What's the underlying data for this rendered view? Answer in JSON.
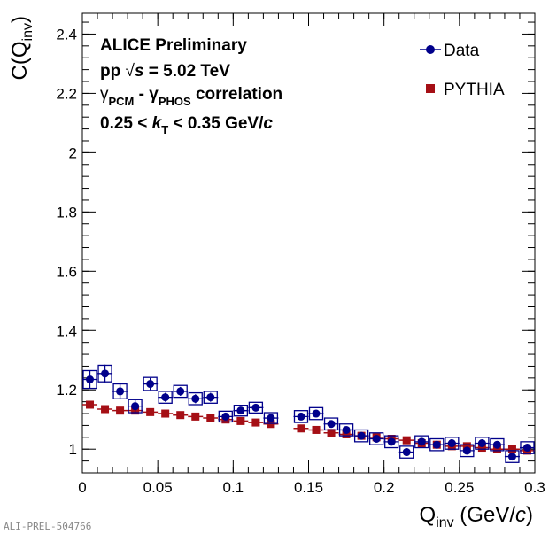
{
  "chart_data": {
    "type": "scatter",
    "title": "",
    "xlabel": {
      "main": "Q",
      "sub": "inv",
      "unit_pre": " (GeV/",
      "unit_italic": "c",
      "unit_post": ")"
    },
    "ylabel": {
      "main": "C(Q",
      "sub": "inv",
      "post": ")"
    },
    "xlim": [
      0,
      0.3
    ],
    "ylim": [
      0.92,
      2.47
    ],
    "xticks": [
      0,
      0.05,
      0.1,
      0.15,
      0.2,
      0.25,
      0.3
    ],
    "xtick_labels": [
      "0",
      "0.05",
      "0.1",
      "0.15",
      "0.2",
      "0.25",
      "0.3"
    ],
    "yticks": [
      1,
      1.2,
      1.4,
      1.6,
      1.8,
      2,
      2.2,
      2.4
    ],
    "ytick_labels": [
      "1",
      "1.2",
      "1.4",
      "1.6",
      "1.8",
      "2",
      "2.2",
      "2.4"
    ],
    "grid": false,
    "legend_position": "top-right",
    "annotations": {
      "line1": "ALICE Preliminary",
      "line2_pre": "pp  ",
      "line2_sqrt": "√",
      "line2_s": "s",
      "line2_post": " = 5.02 TeV",
      "line3_g1": "γ",
      "line3_s1": "PCM",
      "line3_mid": " - γ",
      "line3_s2": "PHOS",
      "line3_post": " correlation",
      "line4_pre": "0.25 <  ",
      "line4_k": "k",
      "line4_ks": "T",
      "line4_mid": " < 0.35 GeV/",
      "line4_c": "c"
    },
    "watermark": "ALI-PREL-504766",
    "series": [
      {
        "name": "Data",
        "color": "#00008b",
        "marker": "circle",
        "x": [
          0.005,
          0.015,
          0.025,
          0.035,
          0.045,
          0.055,
          0.065,
          0.075,
          0.085,
          0.095,
          0.105,
          0.115,
          0.125,
          0.145,
          0.155,
          0.165,
          0.175,
          0.185,
          0.195,
          0.205,
          0.215,
          0.225,
          0.235,
          0.245,
          0.255,
          0.265,
          0.275,
          0.285,
          0.295
        ],
        "y": [
          1.235,
          1.255,
          1.195,
          1.145,
          1.22,
          1.175,
          1.195,
          1.17,
          1.175,
          1.11,
          1.13,
          1.14,
          1.105,
          1.11,
          1.12,
          1.085,
          1.065,
          1.045,
          1.035,
          1.025,
          0.99,
          1.025,
          1.015,
          1.02,
          0.995,
          1.02,
          1.015,
          0.975,
          1.005
        ],
        "stat_err": [
          0.03,
          0.03,
          0.025,
          0.02,
          0.02,
          0.015,
          0.015,
          0.015,
          0.015,
          0.01,
          0.01,
          0.01,
          0.01,
          0.01,
          0.01,
          0.01,
          0.01,
          0.01,
          0.01,
          0.01,
          0.01,
          0.01,
          0.01,
          0.01,
          0.01,
          0.01,
          0.01,
          0.01,
          0.01
        ],
        "sys_err": [
          0.03,
          0.028,
          0.025,
          0.022,
          0.022,
          0.02,
          0.02,
          0.02,
          0.02,
          0.018,
          0.018,
          0.018,
          0.018,
          0.02,
          0.02,
          0.02,
          0.02,
          0.02,
          0.02,
          0.02,
          0.02,
          0.02,
          0.02,
          0.02,
          0.02,
          0.02,
          0.02,
          0.02,
          0.02
        ]
      },
      {
        "name": "PYTHIA",
        "color": "#a50f15",
        "marker": "square",
        "x": [
          0.005,
          0.015,
          0.025,
          0.035,
          0.045,
          0.055,
          0.065,
          0.075,
          0.085,
          0.095,
          0.105,
          0.115,
          0.125,
          0.145,
          0.155,
          0.165,
          0.175,
          0.185,
          0.195,
          0.205,
          0.215,
          0.225,
          0.235,
          0.245,
          0.255,
          0.265,
          0.275,
          0.285,
          0.295
        ],
        "y": [
          1.15,
          1.135,
          1.13,
          1.13,
          1.125,
          1.12,
          1.115,
          1.11,
          1.105,
          1.1,
          1.095,
          1.09,
          1.085,
          1.07,
          1.065,
          1.055,
          1.05,
          1.045,
          1.04,
          1.035,
          1.03,
          1.02,
          1.015,
          1.01,
          1.01,
          1.005,
          1.0,
          1.0,
          0.995
        ]
      }
    ]
  }
}
